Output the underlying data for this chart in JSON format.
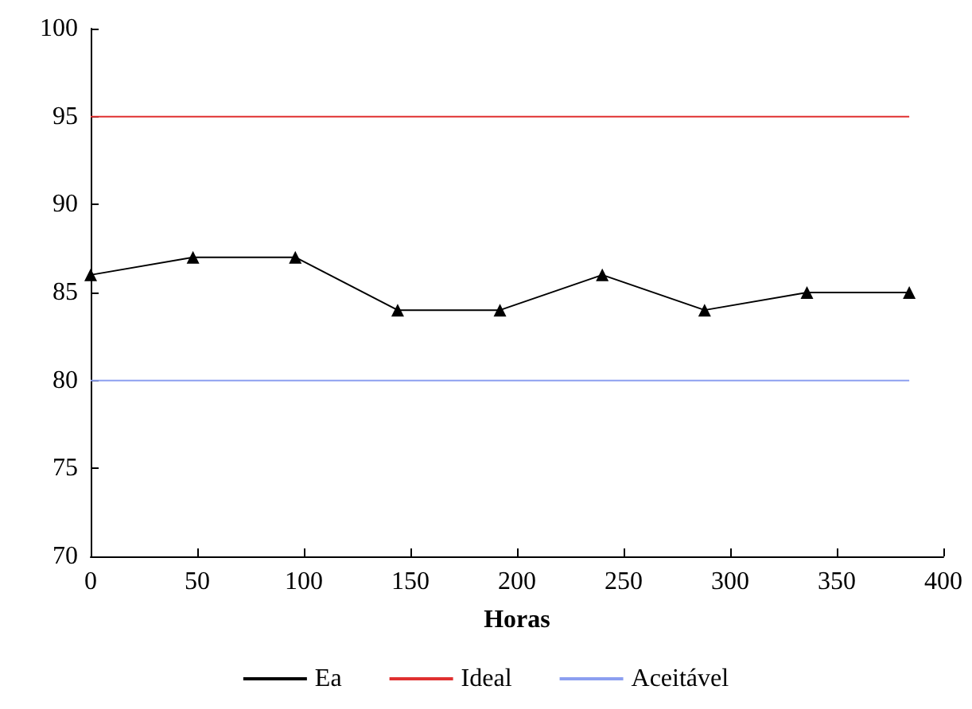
{
  "chart_data": {
    "type": "line",
    "xlabel": "Horas",
    "xlim": [
      0,
      400
    ],
    "xticks": [
      0,
      50,
      100,
      150,
      200,
      250,
      300,
      350,
      400
    ],
    "ylim": [
      70,
      100
    ],
    "yticks": [
      70,
      75,
      80,
      85,
      90,
      95,
      100
    ],
    "grid": false,
    "legend": "bottom",
    "series": [
      {
        "name": "Ea",
        "color": "#000000",
        "marker": "triangle",
        "x": [
          0,
          48,
          96,
          144,
          192,
          240,
          288,
          336,
          384
        ],
        "values": [
          86,
          87,
          87,
          84,
          84,
          86,
          84,
          85,
          85
        ]
      },
      {
        "name": "Ideal",
        "color": "#e03030",
        "marker": "none",
        "x": [
          0,
          384
        ],
        "values": [
          95,
          95
        ]
      },
      {
        "name": "Aceitável",
        "color": "#8c9ff0",
        "marker": "none",
        "x": [
          0,
          384
        ],
        "values": [
          80,
          80
        ]
      }
    ]
  }
}
